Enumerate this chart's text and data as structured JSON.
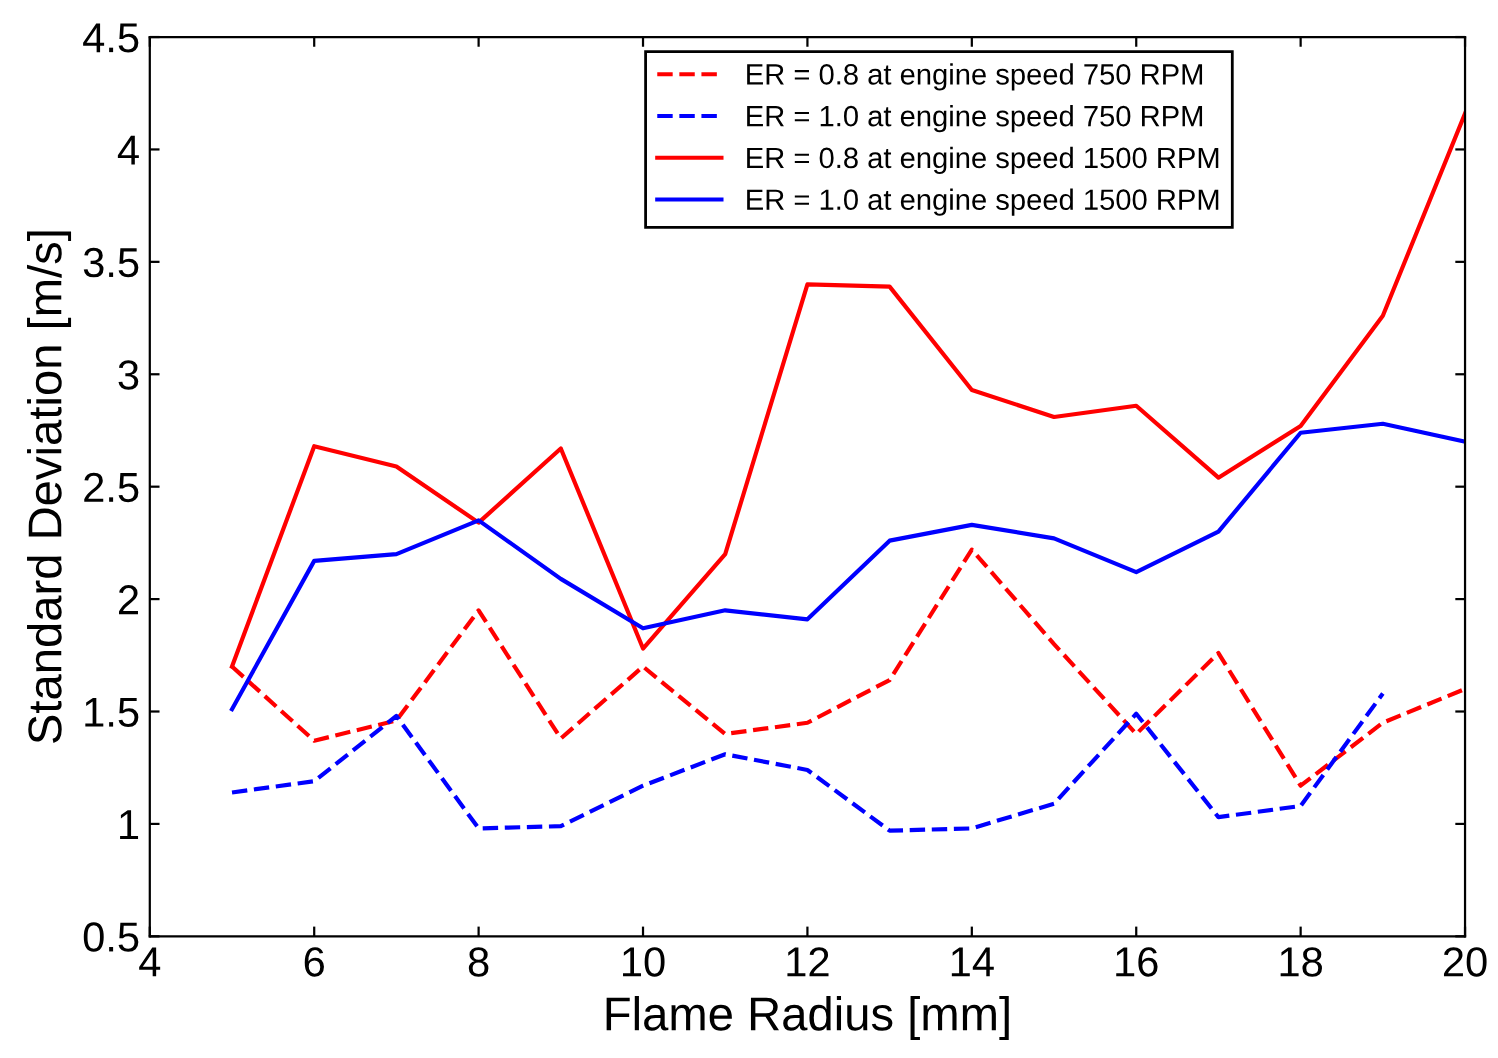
{
  "chart_data": {
    "type": "line",
    "xlabel": "Flame Radius [mm]",
    "ylabel": "Standard Deviation [m/s]",
    "x": [
      5,
      6,
      7,
      8,
      9,
      10,
      11,
      12,
      13,
      14,
      15,
      16,
      17,
      18,
      19,
      20
    ],
    "xlim": [
      4,
      20
    ],
    "xticks": [
      4,
      6,
      8,
      10,
      12,
      14,
      16,
      18,
      20
    ],
    "ylim": [
      0.5,
      4.5
    ],
    "yticks": [
      0.5,
      1,
      1.5,
      2,
      2.5,
      3,
      3.5,
      4,
      4.5
    ],
    "grid": false,
    "legend": "top",
    "marker": "none",
    "series": [
      {
        "name": "ER = 0.8 at engine speed 750 RPM",
        "color": "#ff0000",
        "line_style": "dashed",
        "values": [
          1.7,
          1.37,
          1.46,
          1.95,
          1.38,
          1.7,
          1.4,
          1.45,
          1.64,
          2.22,
          1.8,
          1.4,
          1.76,
          1.17,
          1.45,
          1.6
        ]
      },
      {
        "name": "ER = 1.0 at engine speed 750 RPM",
        "color": "#0000ff",
        "line_style": "dashed",
        "values": [
          1.14,
          1.19,
          1.48,
          0.98,
          0.99,
          1.17,
          1.31,
          1.24,
          0.97,
          0.98,
          1.09,
          1.49,
          1.03,
          1.08,
          1.58,
          null
        ]
      },
      {
        "name": "ER = 0.8 at engine speed 1500 RPM",
        "color": "#ff0000",
        "line_style": "solid",
        "values": [
          1.7,
          2.68,
          2.59,
          2.34,
          2.67,
          1.78,
          2.2,
          3.4,
          3.39,
          2.93,
          2.81,
          2.86,
          2.54,
          2.77,
          3.26,
          4.16
        ]
      },
      {
        "name": "ER = 1.0 at engine speed 1500 RPM",
        "color": "#0000ff",
        "line_style": "solid",
        "values": [
          1.51,
          2.17,
          2.2,
          2.35,
          2.09,
          1.87,
          1.95,
          1.91,
          2.26,
          2.33,
          2.27,
          2.12,
          2.3,
          2.74,
          2.78,
          2.7
        ]
      }
    ]
  }
}
